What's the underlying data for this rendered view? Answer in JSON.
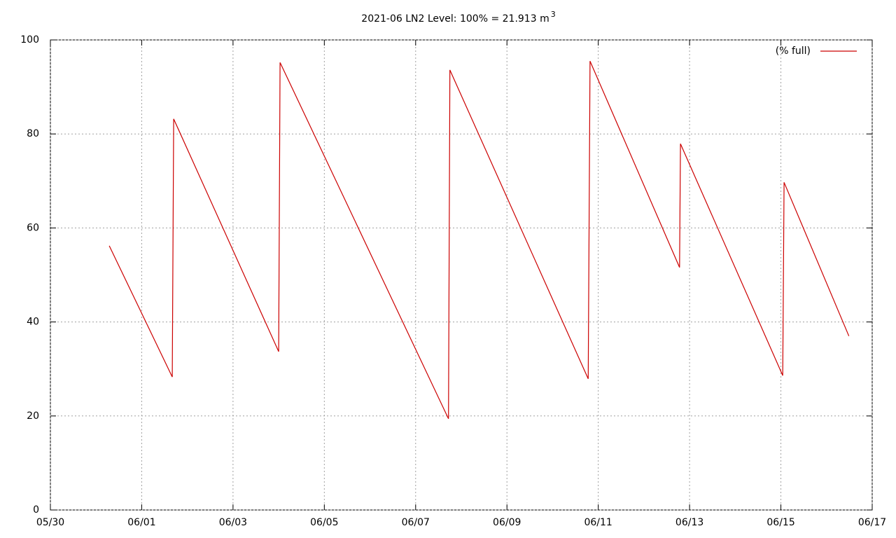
{
  "chart_data": {
    "type": "line",
    "title": "2021-06 LN2 Level: 100% = 21.913 m",
    "title_superscript": "3",
    "series": [
      {
        "name": "(% full)",
        "color": "#cc0000",
        "x": [
          1.29,
          2.67,
          2.7,
          5.0,
          5.03,
          8.72,
          8.75,
          11.78,
          11.82,
          13.78,
          13.8,
          16.04,
          16.07,
          17.49
        ],
        "values": [
          56.2,
          28.3,
          83.2,
          33.7,
          95.2,
          19.4,
          93.6,
          27.9,
          95.5,
          51.6,
          77.9,
          28.6,
          69.7,
          37.0
        ]
      }
    ],
    "xlim": [
      0,
      18
    ],
    "xticks": [
      {
        "value": 0,
        "label": "05/30"
      },
      {
        "value": 2,
        "label": "06/01"
      },
      {
        "value": 4,
        "label": "06/03"
      },
      {
        "value": 6,
        "label": "06/05"
      },
      {
        "value": 8,
        "label": "06/07"
      },
      {
        "value": 10,
        "label": "06/09"
      },
      {
        "value": 12,
        "label": "06/11"
      },
      {
        "value": 14,
        "label": "06/13"
      },
      {
        "value": 16,
        "label": "06/15"
      },
      {
        "value": 18,
        "label": "06/17"
      }
    ],
    "ylim": [
      0,
      100
    ],
    "yticks": [
      0,
      20,
      40,
      60,
      80,
      100
    ],
    "grid": true,
    "legend": "top-right"
  }
}
